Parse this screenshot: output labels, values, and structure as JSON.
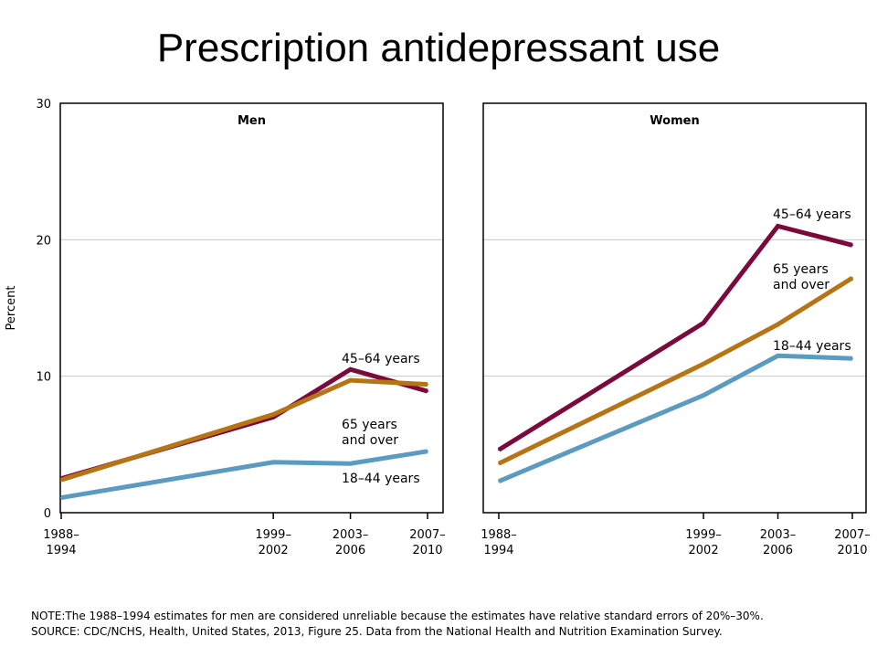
{
  "title": "Prescription antidepressant use",
  "chart_data": [
    {
      "type": "line",
      "title": "Men",
      "ylabel": "Percent",
      "ylim": [
        0,
        30
      ],
      "yticks": [
        0,
        10,
        20,
        30
      ],
      "grid": true,
      "x": [
        1988,
        1999,
        2003,
        2007
      ],
      "xticks": [
        [
          "1988–",
          "1994"
        ],
        [
          "1999–",
          "2002"
        ],
        [
          "2003–",
          "2006"
        ],
        [
          "2007–",
          "2010"
        ]
      ],
      "series": [
        {
          "name": "45–64 years",
          "label": [
            "45–64 years"
          ],
          "color": "#7a0a3c",
          "values": [
            2.5,
            7.0,
            10.5,
            8.9
          ]
        },
        {
          "name": "65 years and over",
          "label": [
            "65 years",
            "and over"
          ],
          "color": "#b57514",
          "values": [
            2.4,
            7.2,
            9.7,
            9.4
          ]
        },
        {
          "name": "18–44 years",
          "label": [
            "18–44 years"
          ],
          "color": "#5b9bc0",
          "values": [
            1.1,
            3.7,
            3.6,
            4.5
          ]
        }
      ]
    },
    {
      "type": "line",
      "title": "Women",
      "ylim": [
        0,
        30
      ],
      "yticks": [
        0,
        10,
        20,
        30
      ],
      "grid": true,
      "x": [
        1988,
        1999,
        2003,
        2007
      ],
      "xticks": [
        [
          "1988–",
          "1994"
        ],
        [
          "1999–",
          "2002"
        ],
        [
          "2003–",
          "2006"
        ],
        [
          "2007–",
          "2010"
        ]
      ],
      "series": [
        {
          "name": "45–64 years",
          "label": [
            "45–64 years"
          ],
          "color": "#7a0a3c",
          "values": [
            4.6,
            13.9,
            21.0,
            19.6
          ]
        },
        {
          "name": "65 years and over",
          "label": [
            "65 years",
            "and over"
          ],
          "color": "#b57514",
          "values": [
            3.6,
            10.9,
            13.8,
            17.2
          ]
        },
        {
          "name": "18–44 years",
          "label": [
            "18–44 years"
          ],
          "color": "#5b9bc0",
          "values": [
            2.3,
            8.6,
            11.5,
            11.3
          ]
        }
      ]
    }
  ],
  "note": "NOTE:The 1988–1994 estimates for men are considered unreliable because the estimates have relative standard errors of 20%–30%.",
  "source": "SOURCE: CDC/NCHS, Health, United States, 2013, Figure 25. Data from the National Health and Nutrition Examination Survey."
}
